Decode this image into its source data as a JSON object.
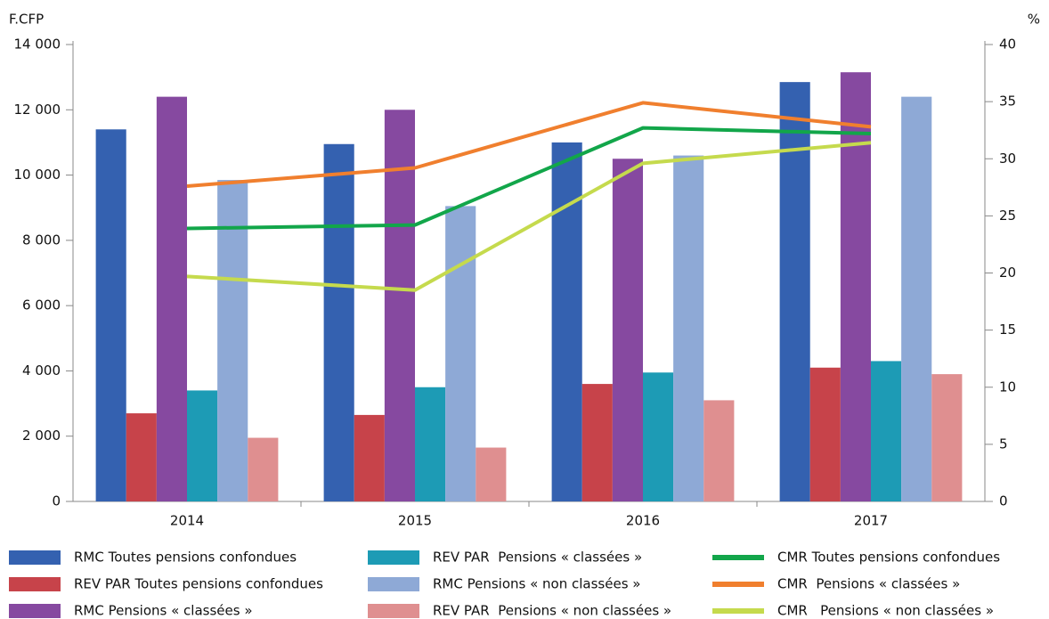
{
  "chart_data": {
    "type": "bar",
    "y_unit": "F.CFP",
    "y2_unit": "%",
    "categories": [
      "2014",
      "2015",
      "2016",
      "2017"
    ],
    "series": [
      {
        "name": "RMC Toutes pensions confondues",
        "color": "#3461b0",
        "type": "bar",
        "values": [
          11400,
          10950,
          11000,
          12850
        ]
      },
      {
        "name": "REV PAR Toutes pensions confondues",
        "color": "#c7434a",
        "type": "bar",
        "values": [
          2700,
          2650,
          3600,
          4100
        ]
      },
      {
        "name": "RMC Pensions « classées »",
        "color": "#8649a0",
        "type": "bar",
        "values": [
          12400,
          12000,
          10500,
          13150
        ]
      },
      {
        "name": "REV PAR  Pensions « classées »",
        "color": "#1d9bb5",
        "type": "bar",
        "values": [
          3400,
          3500,
          3950,
          4300
        ]
      },
      {
        "name": "RMC Pensions « non classées »",
        "color": "#8ea9d6",
        "type": "bar",
        "values": [
          9850,
          9050,
          10600,
          12400
        ]
      },
      {
        "name": "REV PAR  Pensions « non classées »",
        "color": "#df8f90",
        "type": "bar",
        "values": [
          1950,
          1650,
          3100,
          3900
        ]
      },
      {
        "name": "CMR Toutes pensions confondues",
        "color": "#12a64a",
        "type": "line",
        "axis": "y2",
        "values": [
          23.9,
          24.2,
          32.7,
          32.2
        ]
      },
      {
        "name": "CMR  Pensions « classées »",
        "color": "#f07f2e",
        "type": "line",
        "axis": "y2",
        "values": [
          27.6,
          29.2,
          34.9,
          32.8
        ]
      },
      {
        "name": "CMR   Pensions « non classées »",
        "color": "#c5da4d",
        "type": "line",
        "axis": "y2",
        "values": [
          19.7,
          18.5,
          29.6,
          31.4
        ]
      }
    ],
    "ylim": [
      0,
      14000
    ],
    "yticks": [
      0,
      {
        "value": 2000,
        "label": "2 000"
      },
      {
        "value": 4000,
        "label": "4 000"
      },
      {
        "value": 6000,
        "label": "6 000"
      },
      {
        "value": 8000,
        "label": "8 000"
      },
      {
        "value": 10000,
        "label": "10 000"
      },
      {
        "value": 12000,
        "label": "12 000"
      },
      {
        "value": 14000,
        "label": "14 000"
      }
    ],
    "y2lim": [
      0,
      40
    ],
    "y2ticks": [
      0,
      5,
      10,
      15,
      20,
      25,
      30,
      35,
      40
    ],
    "legend": "bottom"
  }
}
